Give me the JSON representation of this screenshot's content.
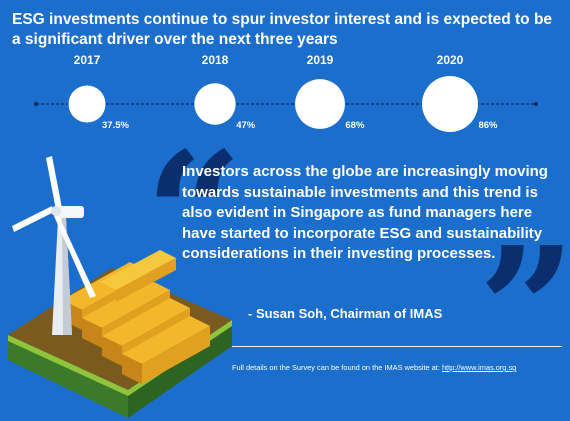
{
  "headline": "ESG investments continue to spur investor interest and is expected to be a significant driver over the next three years",
  "chart_data": {
    "type": "scatter",
    "title": "",
    "x": [
      "2017",
      "2018",
      "2019",
      "2020"
    ],
    "values": [
      37.5,
      47,
      68,
      86
    ],
    "value_labels": [
      "37.5%",
      "47%",
      "68%",
      "86%"
    ],
    "unit": "%"
  },
  "quote": {
    "text": "Investors across the globe are increasingly moving towards sustainable investments and this trend is also evident in Singapore as fund managers here have started to incorporate ESG and sustainability considerations in their investing processes.",
    "attribution": "- Susan Soh, Chairman of IMAS"
  },
  "footnote": {
    "text": "Full details on the Survey can be found on the IMAS website at: ",
    "link": "http://www.imas.org.sg"
  },
  "colors": {
    "background": "#1b6ecb",
    "quote_mark": "#0b2f6e",
    "bubble": "#ffffff",
    "timeline": "#0d2a5c"
  }
}
